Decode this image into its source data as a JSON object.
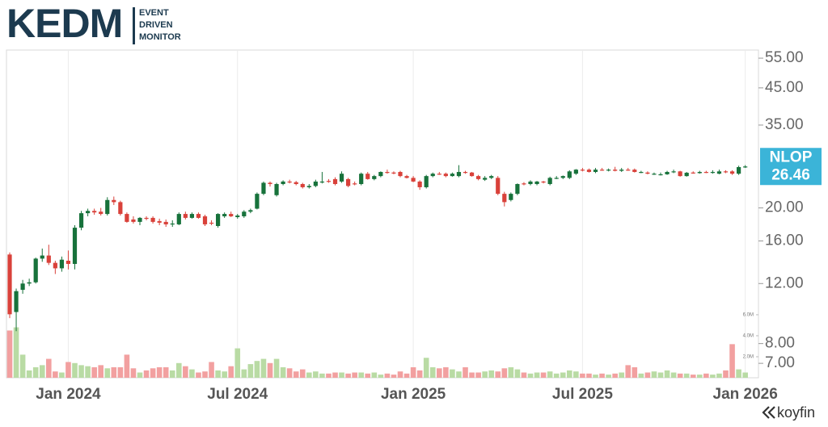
{
  "header": {
    "logo": "KEDM",
    "tagline": [
      "EVENT",
      "DRIVEN",
      "MONITOR"
    ]
  },
  "footer": {
    "brand": "koyfin"
  },
  "chart_data": {
    "type": "candlestick",
    "ticker": "NLOP",
    "last": 26.46,
    "log_scale": true,
    "grid": true,
    "up_color": "#17723b",
    "down_color": "#d9413a",
    "up_volume_color": "#b9dba4",
    "down_volume_color": "#f2a0a0",
    "tag_color": "#3bb4d8",
    "ylim": [
      6.35,
      58.1
    ],
    "yticks": [
      {
        "value": 55,
        "label": "55.00"
      },
      {
        "value": 45,
        "label": "45.00"
      },
      {
        "value": 35,
        "label": "35.00"
      },
      {
        "value": 20,
        "label": "20.00"
      },
      {
        "value": 16,
        "label": "16.00"
      },
      {
        "value": 12,
        "label": "12.00"
      },
      {
        "value": 8,
        "label": "8.00"
      },
      {
        "value": 7,
        "label": "7.00"
      }
    ],
    "y2lim": [
      0,
      31200000.0
    ],
    "y2ticks": [
      {
        "value": 6000000.0,
        "label": "6.0M"
      },
      {
        "value": 4000000.0,
        "label": "4.0M"
      },
      {
        "value": 2000000.0,
        "label": "2.0M"
      }
    ],
    "categories": [
      null,
      null,
      null,
      null,
      null,
      null,
      null,
      null,
      null,
      "Jan 2024",
      null,
      null,
      null,
      null,
      null,
      null,
      null,
      null,
      null,
      null,
      null,
      null,
      null,
      null,
      null,
      null,
      null,
      null,
      null,
      null,
      null,
      null,
      null,
      null,
      null,
      "Jul 2024",
      null,
      null,
      null,
      null,
      null,
      null,
      null,
      null,
      null,
      null,
      null,
      null,
      null,
      null,
      null,
      null,
      null,
      null,
      null,
      null,
      null,
      null,
      null,
      null,
      null,
      null,
      "Jan 2025",
      null,
      null,
      null,
      null,
      null,
      null,
      null,
      null,
      null,
      null,
      null,
      null,
      null,
      null,
      null,
      null,
      null,
      null,
      null,
      null,
      null,
      null,
      null,
      null,
      null,
      "Jul 2025",
      null,
      null,
      null,
      null,
      null,
      null,
      null,
      null,
      null,
      null,
      null,
      null,
      null,
      null,
      null,
      null,
      null,
      null,
      null,
      null,
      null,
      null,
      null,
      null,
      "Jan 2026"
    ],
    "ohlc": [
      [
        14.6,
        14.8,
        9.5,
        9.75
      ],
      [
        9.9,
        11.6,
        8.7,
        11.4
      ],
      [
        11.5,
        12.3,
        11.2,
        12.0
      ],
      [
        12.0,
        12.4,
        11.8,
        12.1
      ],
      [
        12.1,
        14.3,
        12.0,
        14.2
      ],
      [
        14.2,
        15.2,
        13.9,
        14.5
      ],
      [
        14.5,
        15.6,
        13.6,
        13.8
      ],
      [
        13.8,
        14.0,
        12.8,
        13.3
      ],
      [
        13.3,
        14.4,
        13.0,
        14.1
      ],
      [
        14.0,
        15.0,
        13.2,
        13.7
      ],
      [
        13.7,
        17.8,
        13.2,
        17.5
      ],
      [
        17.5,
        19.6,
        17.2,
        19.3
      ],
      [
        19.3,
        19.9,
        18.9,
        19.6
      ],
      [
        19.6,
        19.9,
        19.1,
        19.4
      ],
      [
        19.5,
        20.0,
        19.0,
        19.2
      ],
      [
        19.2,
        21.5,
        19.0,
        21.1
      ],
      [
        21.1,
        21.6,
        20.4,
        20.8
      ],
      [
        20.8,
        21.0,
        19.0,
        19.2
      ],
      [
        19.2,
        19.4,
        18.1,
        18.2
      ],
      [
        18.5,
        18.9,
        18.0,
        18.2
      ],
      [
        18.2,
        18.8,
        17.8,
        18.7
      ],
      [
        18.7,
        18.9,
        18.4,
        18.6
      ],
      [
        18.7,
        18.9,
        18.0,
        18.2
      ],
      [
        18.3,
        18.6,
        17.8,
        18.1
      ],
      [
        18.2,
        18.5,
        17.6,
        17.9
      ],
      [
        17.9,
        18.4,
        17.6,
        18.0
      ],
      [
        17.9,
        19.4,
        17.8,
        19.2
      ],
      [
        19.2,
        19.5,
        18.5,
        18.7
      ],
      [
        18.7,
        19.4,
        18.6,
        19.2
      ],
      [
        19.2,
        19.4,
        18.6,
        18.7
      ],
      [
        18.9,
        19.1,
        17.7,
        17.9
      ],
      [
        18.1,
        18.4,
        17.8,
        18.0
      ],
      [
        17.7,
        19.3,
        17.5,
        19.2
      ],
      [
        18.9,
        19.4,
        18.7,
        19.2
      ],
      [
        19.2,
        19.5,
        18.8,
        18.9
      ],
      [
        18.8,
        19.2,
        18.6,
        19.0
      ],
      [
        18.9,
        19.7,
        18.7,
        19.5
      ],
      [
        19.5,
        19.9,
        19.3,
        19.7
      ],
      [
        19.9,
        22.2,
        19.8,
        22.0
      ],
      [
        22.0,
        23.9,
        21.8,
        23.7
      ],
      [
        23.7,
        23.9,
        23.1,
        23.5
      ],
      [
        21.8,
        23.7,
        21.6,
        23.5
      ],
      [
        23.5,
        24.1,
        23.3,
        23.9
      ],
      [
        23.9,
        24.2,
        23.6,
        23.8
      ],
      [
        23.8,
        24.0,
        23.3,
        23.5
      ],
      [
        23.5,
        23.7,
        22.8,
        23.0
      ],
      [
        23.0,
        23.5,
        22.8,
        23.2
      ],
      [
        23.2,
        24.2,
        23.0,
        23.9
      ],
      [
        23.8,
        25.5,
        23.6,
        23.9
      ],
      [
        24.0,
        24.3,
        23.7,
        23.9
      ],
      [
        24.3,
        24.6,
        23.3,
        23.5
      ],
      [
        23.9,
        25.6,
        23.7,
        25.2
      ],
      [
        24.3,
        24.5,
        23.0,
        23.2
      ],
      [
        23.6,
        23.9,
        23.3,
        23.5
      ],
      [
        23.5,
        25.4,
        23.3,
        25.2
      ],
      [
        25.2,
        25.5,
        24.2,
        24.3
      ],
      [
        24.3,
        25.0,
        24.1,
        24.8
      ],
      [
        24.8,
        25.6,
        24.6,
        25.5
      ],
      [
        25.5,
        25.9,
        25.2,
        25.36
      ],
      [
        25.4,
        25.6,
        25.1,
        25.3
      ],
      [
        25.5,
        25.7,
        24.6,
        24.8
      ],
      [
        24.8,
        25.0,
        24.4,
        24.5
      ],
      [
        24.5,
        24.8,
        23.8,
        23.9
      ],
      [
        23.9,
        24.1,
        22.6,
        23.0
      ],
      [
        23.0,
        25.0,
        22.8,
        24.8
      ],
      [
        24.8,
        25.4,
        24.6,
        25.2
      ],
      [
        25.2,
        25.5,
        25.0,
        25.1
      ],
      [
        25.2,
        25.4,
        24.6,
        24.8
      ],
      [
        24.8,
        25.4,
        24.7,
        25.2
      ],
      [
        24.8,
        26.7,
        24.6,
        25.5
      ],
      [
        25.5,
        25.7,
        25.2,
        25.36
      ],
      [
        25.4,
        25.5,
        24.7,
        24.8
      ],
      [
        24.8,
        25.0,
        24.1,
        24.3
      ],
      [
        24.2,
        24.8,
        24.0,
        24.5
      ],
      [
        24.5,
        25.0,
        24.3,
        24.8
      ],
      [
        24.5,
        24.8,
        21.8,
        22.0
      ],
      [
        22.0,
        22.3,
        20.2,
        20.8
      ],
      [
        21.1,
        22.2,
        20.9,
        22.0
      ],
      [
        22.0,
        23.6,
        21.8,
        23.5
      ],
      [
        23.6,
        23.8,
        23.3,
        23.5
      ],
      [
        23.5,
        24.1,
        23.3,
        23.9
      ],
      [
        23.5,
        24.0,
        23.3,
        23.9
      ],
      [
        23.9,
        24.0,
        23.6,
        23.8
      ],
      [
        23.5,
        24.7,
        23.3,
        24.5
      ],
      [
        24.5,
        24.8,
        24.3,
        24.5
      ],
      [
        24.5,
        24.9,
        24.3,
        24.8
      ],
      [
        24.5,
        25.8,
        24.3,
        25.6
      ],
      [
        25.2,
        26.0,
        25.0,
        25.9
      ],
      [
        25.9,
        26.2,
        25.6,
        25.8
      ],
      [
        25.9,
        26.1,
        25.4,
        25.5
      ],
      [
        25.5,
        26.2,
        25.3,
        25.9
      ],
      [
        25.9,
        26.2,
        25.7,
        25.8
      ],
      [
        25.8,
        26.1,
        25.6,
        25.9
      ],
      [
        25.9,
        26.4,
        25.6,
        25.7
      ],
      [
        25.7,
        26.2,
        25.5,
        25.9
      ],
      [
        25.9,
        26.2,
        25.7,
        25.8
      ],
      [
        25.9,
        26.1,
        25.4,
        25.5
      ],
      [
        25.5,
        25.7,
        25.3,
        25.5
      ],
      [
        25.4,
        25.6,
        25.1,
        25.2
      ],
      [
        25.2,
        25.4,
        25.0,
        25.2
      ],
      [
        25.0,
        25.4,
        24.9,
        25.1
      ],
      [
        25.1,
        25.7,
        25.0,
        25.5
      ],
      [
        25.5,
        25.9,
        25.3,
        25.6
      ],
      [
        25.6,
        25.7,
        24.7,
        24.8
      ],
      [
        24.8,
        25.5,
        24.7,
        25.36
      ],
      [
        25.4,
        25.6,
        25.2,
        25.3
      ],
      [
        25.3,
        25.7,
        25.2,
        25.5
      ],
      [
        25.5,
        25.7,
        25.3,
        25.36
      ],
      [
        25.36,
        25.8,
        25.2,
        25.5
      ],
      [
        25.2,
        25.9,
        25.1,
        25.6
      ],
      [
        25.6,
        25.8,
        25.3,
        25.5
      ],
      [
        25.6,
        25.8,
        25.0,
        25.2
      ],
      [
        25.2,
        26.6,
        25.0,
        26.35
      ],
      [
        26.35,
        26.7,
        26.2,
        26.46
      ]
    ],
    "volume": [
      4500000.0,
      4800000.0,
      2200000.0,
      700000.0,
      1000000.0,
      1200000.0,
      1800000.0,
      600000.0,
      500000.0,
      1500000.0,
      1400000.0,
      1200000.0,
      1100000.0,
      1000000.0,
      1200000.0,
      900000.0,
      1000000.0,
      1000000.0,
      2200000.0,
      900000.0,
      500000.0,
      700000.0,
      900000.0,
      1000000.0,
      1000000.0,
      700000.0,
      1400000.0,
      1100000.0,
      800000.0,
      500000.0,
      600000.0,
      1500000.0,
      700000.0,
      600000.0,
      1100000.0,
      2800000.0,
      800000.0,
      1300000.0,
      1600000.0,
      1800000.0,
      1400000.0,
      1800000.0,
      1000000.0,
      900000.0,
      600000.0,
      800000.0,
      500000.0,
      600000.0,
      400000.0,
      400000.0,
      500000.0,
      500000.0,
      400000.0,
      500000.0,
      500000.0,
      400000.0,
      500000.0,
      300000.0,
      400000.0,
      300000.0,
      600000.0,
      400000.0,
      1000000.0,
      700000.0,
      1900000.0,
      1000000.0,
      900000.0,
      1000000.0,
      800000.0,
      600000.0,
      1000000.0,
      500000.0,
      500000.0,
      600000.0,
      700000.0,
      600000.0,
      900000.0,
      1000000.0,
      800000.0,
      500000.0,
      400000.0,
      500000.0,
      500000.0,
      600000.0,
      400000.0,
      500000.0,
      700000.0,
      600000.0,
      400000.0,
      400000.0,
      300000.0,
      400000.0,
      300000.0,
      400000.0,
      500000.0,
      1200000.0,
      1000000.0,
      400000.0,
      500000.0,
      600000.0,
      500000.0,
      700000.0,
      500000.0,
      400000.0,
      400000.0,
      300000.0,
      300000.0,
      400000.0,
      300000.0,
      400000.0,
      700000.0,
      3200000.0,
      800000.0,
      500000.0
    ]
  }
}
